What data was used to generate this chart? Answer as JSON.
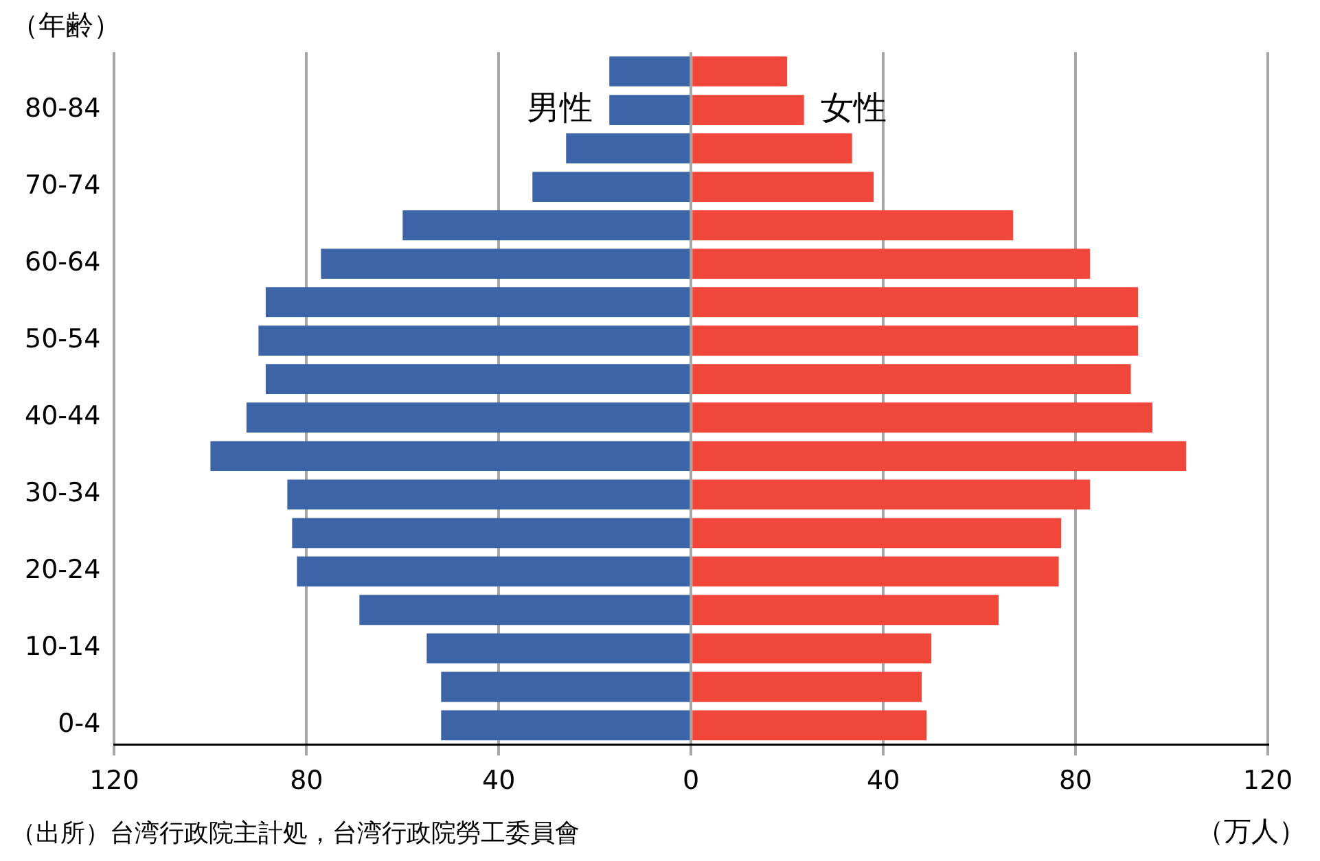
{
  "chart_data": {
    "type": "bar",
    "orientation": "horizontal",
    "ylabel": "（年齢）",
    "xlabel": "（万人）",
    "annotations": [
      "（出所）台湾行政院主計処，台湾行政院勞工委員會"
    ],
    "categories": [
      null,
      "80-84",
      null,
      "70-74",
      null,
      "60-64",
      null,
      "50-54",
      null,
      "40-44",
      null,
      "30-34",
      null,
      "20-24",
      null,
      "10-14",
      null,
      "0-4"
    ],
    "series": [
      {
        "name": "男性",
        "color": "#3e64a8",
        "values": [
          -17,
          -17,
          -26,
          -33,
          -60,
          -77,
          -88.5,
          -90,
          -88.5,
          -92.5,
          -100,
          -84,
          -83,
          -82,
          -69,
          -55,
          -52,
          -52
        ]
      },
      {
        "name": "女性",
        "color": "#f0473a",
        "values": [
          20,
          23.5,
          33.5,
          38,
          67,
          83,
          93,
          93,
          91.5,
          96,
          103,
          83,
          77,
          76.5,
          64,
          50,
          48,
          49
        ]
      }
    ],
    "xlim": [
      -120,
      120
    ],
    "xticks": [
      {
        "value": -120,
        "label": "120"
      },
      {
        "value": -80,
        "label": "80"
      },
      {
        "value": -40,
        "label": "40"
      },
      0,
      40,
      80,
      120
    ],
    "grid": "x",
    "legend": false,
    "stacked": true
  }
}
